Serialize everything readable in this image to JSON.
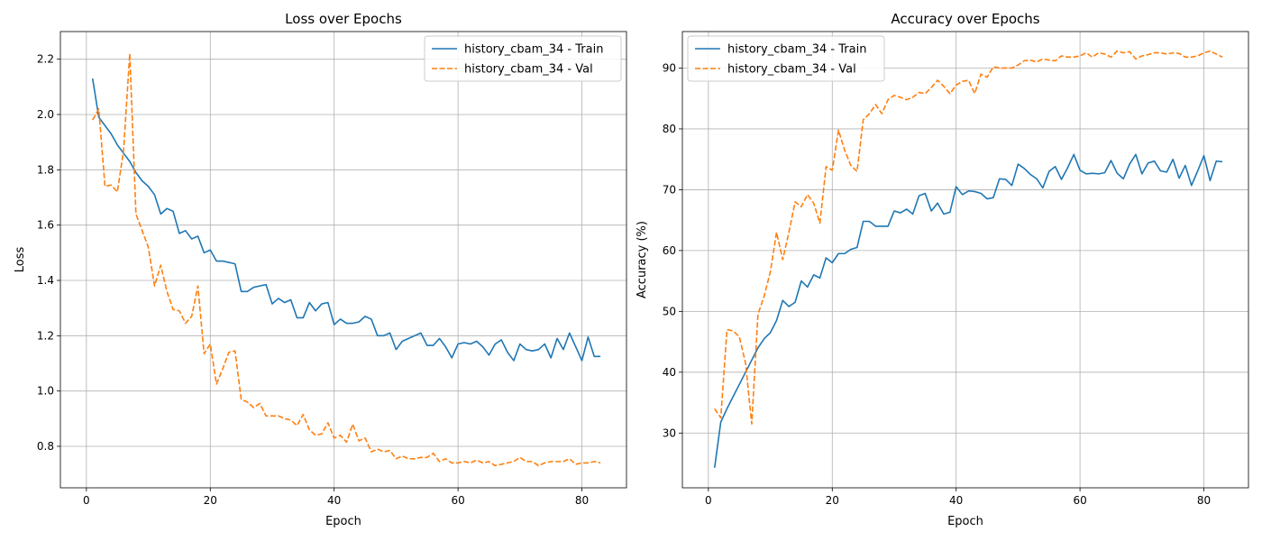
{
  "colors": {
    "train": "#1f77b4",
    "val": "#ff7f0e",
    "grid": "#b0b0b0",
    "axis": "#000000"
  },
  "chart_data": [
    {
      "type": "line",
      "title": "Loss over Epochs",
      "xlabel": "Epoch",
      "ylabel": "Loss",
      "xlim": [
        -4.2,
        87.2
      ],
      "ylim": [
        0.65,
        2.3
      ],
      "xticks": [
        0,
        20,
        40,
        60,
        80
      ],
      "yticks": [
        0.8,
        1.0,
        1.2,
        1.4,
        1.6,
        1.8,
        2.0,
        2.2
      ],
      "ytick_labels": [
        "0.8",
        "1.0",
        "1.2",
        "1.4",
        "1.6",
        "1.8",
        "2.0",
        "2.2"
      ],
      "grid": true,
      "legend_position": "top-right",
      "series": [
        {
          "name": "history_cbam_34 - Train",
          "style": "solid",
          "values": [
            2.13,
            1.99,
            1.96,
            1.93,
            1.89,
            1.86,
            1.83,
            1.79,
            1.76,
            1.74,
            1.71,
            1.64,
            1.66,
            1.65,
            1.57,
            1.58,
            1.55,
            1.56,
            1.5,
            1.51,
            1.47,
            1.47,
            1.465,
            1.46,
            1.36,
            1.36,
            1.375,
            1.38,
            1.385,
            1.315,
            1.335,
            1.32,
            1.33,
            1.265,
            1.265,
            1.32,
            1.29,
            1.315,
            1.32,
            1.24,
            1.26,
            1.245,
            1.245,
            1.25,
            1.27,
            1.26,
            1.2,
            1.2,
            1.21,
            1.15,
            1.18,
            1.19,
            1.2,
            1.21,
            1.165,
            1.165,
            1.19,
            1.16,
            1.12,
            1.17,
            1.175,
            1.17,
            1.18,
            1.16,
            1.13,
            1.17,
            1.185,
            1.14,
            1.11,
            1.17,
            1.15,
            1.145,
            1.15,
            1.17,
            1.12,
            1.19,
            1.15,
            1.21,
            1.16,
            1.11,
            1.195,
            1.125,
            1.125
          ]
        },
        {
          "name": "history_cbam_34 - Val",
          "style": "dashed",
          "values": [
            1.98,
            2.02,
            1.74,
            1.745,
            1.72,
            1.87,
            2.22,
            1.64,
            1.58,
            1.52,
            1.38,
            1.455,
            1.36,
            1.295,
            1.29,
            1.245,
            1.27,
            1.38,
            1.135,
            1.17,
            1.025,
            1.08,
            1.14,
            1.145,
            0.97,
            0.96,
            0.94,
            0.955,
            0.91,
            0.91,
            0.91,
            0.9,
            0.895,
            0.875,
            0.915,
            0.86,
            0.84,
            0.845,
            0.885,
            0.83,
            0.84,
            0.815,
            0.88,
            0.82,
            0.83,
            0.78,
            0.79,
            0.78,
            0.785,
            0.755,
            0.765,
            0.755,
            0.755,
            0.76,
            0.76,
            0.775,
            0.745,
            0.755,
            0.74,
            0.74,
            0.745,
            0.74,
            0.75,
            0.74,
            0.745,
            0.73,
            0.735,
            0.74,
            0.745,
            0.76,
            0.745,
            0.745,
            0.73,
            0.74,
            0.745,
            0.745,
            0.745,
            0.755,
            0.735,
            0.74,
            0.74,
            0.745,
            0.74
          ]
        }
      ]
    },
    {
      "type": "line",
      "title": "Accuracy over Epochs",
      "xlabel": "Epoch",
      "ylabel": "Accuracy (%)",
      "xlim": [
        -4.2,
        87.2
      ],
      "ylim": [
        21.0,
        96.0
      ],
      "xticks": [
        0,
        20,
        40,
        60,
        80
      ],
      "yticks": [
        30,
        40,
        50,
        60,
        70,
        80,
        90
      ],
      "ytick_labels": [
        "30",
        "40",
        "50",
        "60",
        "70",
        "80",
        "90"
      ],
      "grid": true,
      "legend_position": "top-left",
      "series": [
        {
          "name": "history_cbam_34 - Train",
          "style": "solid",
          "values": [
            24.3,
            31.8,
            34.0,
            36.0,
            38.0,
            40.0,
            42.0,
            44.0,
            45.5,
            46.5,
            48.5,
            51.8,
            50.8,
            51.5,
            55.0,
            54.0,
            56.0,
            55.5,
            58.8,
            58.0,
            59.5,
            59.5,
            60.2,
            60.5,
            64.8,
            64.8,
            64.0,
            64.0,
            64.0,
            66.5,
            66.2,
            66.8,
            66.0,
            69.0,
            69.4,
            66.5,
            67.8,
            66.0,
            66.3,
            70.5,
            69.2,
            69.8,
            69.7,
            69.4,
            68.5,
            68.7,
            71.8,
            71.7,
            70.7,
            74.2,
            73.5,
            72.5,
            71.8,
            70.3,
            73.0,
            73.8,
            71.7,
            73.6,
            75.8,
            73.2,
            72.6,
            72.7,
            72.6,
            72.8,
            74.8,
            72.7,
            71.8,
            74.2,
            75.8,
            72.6,
            74.4,
            74.7,
            73.1,
            72.9,
            75.0,
            71.9,
            74.0,
            70.7,
            73.1,
            75.6,
            71.5,
            74.7,
            74.6
          ]
        },
        {
          "name": "history_cbam_34 - Val",
          "style": "dashed",
          "values": [
            34.0,
            32.5,
            47.0,
            46.8,
            45.8,
            41.5,
            31.5,
            49.5,
            52.5,
            56.5,
            63.0,
            58.5,
            63.0,
            68.0,
            67.2,
            69.2,
            67.8,
            64.5,
            73.8,
            73.2,
            79.8,
            76.5,
            74.0,
            73.0,
            81.5,
            82.5,
            84.0,
            82.5,
            84.8,
            85.5,
            85.2,
            84.8,
            85.2,
            86.0,
            85.8,
            86.8,
            88.0,
            87.0,
            85.8,
            87.2,
            87.8,
            88.0,
            85.8,
            89.0,
            88.5,
            90.2,
            90.0,
            90.0,
            90.0,
            90.5,
            91.2,
            91.3,
            91.0,
            91.5,
            91.3,
            91.2,
            92.0,
            91.8,
            91.8,
            92.0,
            92.5,
            91.8,
            92.5,
            92.3,
            91.8,
            92.8,
            92.5,
            92.7,
            91.5,
            92.0,
            92.2,
            92.5,
            92.5,
            92.3,
            92.5,
            92.4,
            91.8,
            91.8,
            92.0,
            92.5,
            92.8,
            92.3,
            91.8
          ]
        }
      ]
    }
  ]
}
